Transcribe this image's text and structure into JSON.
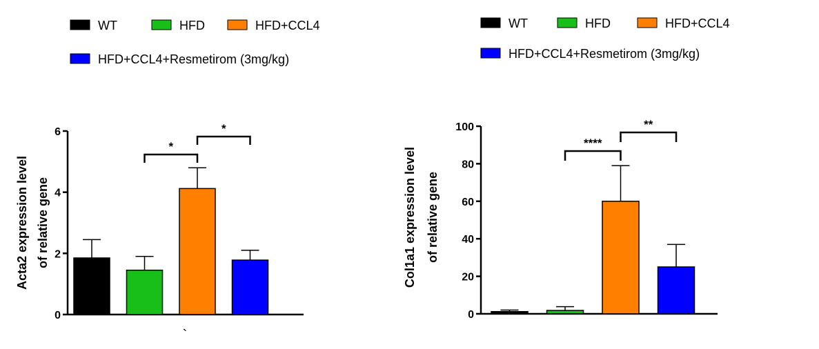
{
  "colors": {
    "WT": "#000000",
    "HFD": "#19bf19",
    "HFD+CCL4": "#ff8000",
    "HFD+CCL4+Resmetirom (3mg/kg)": "#0000ff"
  },
  "chart_data": [
    {
      "type": "bar",
      "legend": [
        "WT",
        "HFD",
        "HFD+CCL4",
        "HFD+CCL4+Resmetirom (3mg/kg)"
      ],
      "categories": [
        "WT",
        "HFD",
        "HFD+CCL4",
        "HFD+CCL4+Resmetirom (3mg/kg)"
      ],
      "values": [
        1.85,
        1.45,
        4.12,
        1.78
      ],
      "errors": [
        0.6,
        0.45,
        0.68,
        0.32
      ],
      "ylabel_line1": "Acta2 expression level",
      "ylabel_line2": "of relative gene",
      "ylim": [
        0,
        6
      ],
      "yticks": [
        0,
        2,
        4,
        6
      ],
      "xnote": "`",
      "significance": [
        {
          "from": 1,
          "to": 2,
          "label": "*"
        },
        {
          "from": 2,
          "to": 3,
          "label": "*"
        }
      ]
    },
    {
      "type": "bar",
      "legend": [
        "WT",
        "HFD",
        "HFD+CCL4",
        "HFD+CCL4+Resmetirom (3mg/kg)"
      ],
      "categories": [
        "WT",
        "HFD",
        "HFD+CCL4",
        "HFD+CCL4+Resmetirom (3mg/kg)"
      ],
      "values": [
        1.2,
        1.8,
        60,
        25
      ],
      "errors": [
        0.8,
        2.0,
        19,
        12
      ],
      "ylabel_line1": "Col1a1 expression level",
      "ylabel_line2": "of relative gene",
      "ylim": [
        0,
        100
      ],
      "yticks": [
        0,
        20,
        40,
        60,
        80,
        100
      ],
      "significance": [
        {
          "from": 1,
          "to": 2,
          "label": "****"
        },
        {
          "from": 2,
          "to": 3,
          "label": "**"
        }
      ]
    }
  ]
}
